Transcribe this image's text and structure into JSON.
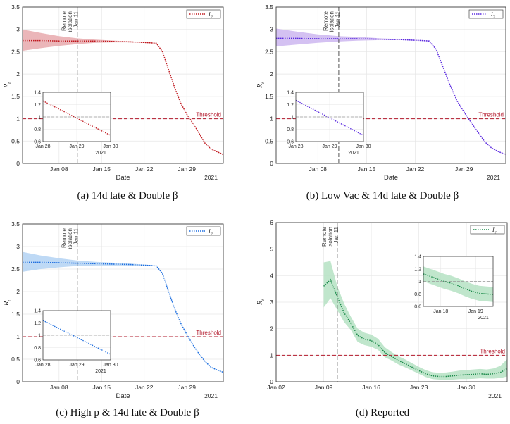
{
  "chart_data": [
    {
      "type": "line",
      "caption": "(a) 14d late & Double β",
      "ylabel": "R_t",
      "xlabel": "Date",
      "year_label": "2021",
      "legend": "I_2",
      "color": "#c0181e",
      "band_color": "#e8a9ad",
      "ylim": [
        0,
        3.5
      ],
      "yticks": [
        0,
        0.5,
        1,
        1.5,
        2,
        2.5,
        3,
        3.5
      ],
      "ytick_labels": [
        "0",
        "0.5",
        "1",
        "1.5",
        "2",
        "2.5",
        "3",
        "3.5"
      ],
      "xlim": [
        0,
        33
      ],
      "xticks": [
        6,
        13,
        20,
        27
      ],
      "xtick_labels": [
        "Jan 08",
        "Jan 15",
        "Jan 22",
        "Jan 29"
      ],
      "threshold": 1,
      "threshold_label": "Threshold",
      "vline_x": 9,
      "vline_label": [
        "Remote",
        "isolation",
        "Jan 11"
      ],
      "x": [
        0,
        3,
        6,
        9,
        12,
        15,
        18,
        21,
        22,
        23,
        24,
        25,
        26,
        27,
        28,
        29,
        30,
        31,
        32,
        33
      ],
      "y": [
        2.75,
        2.75,
        2.74,
        2.74,
        2.74,
        2.73,
        2.72,
        2.7,
        2.69,
        2.5,
        2.1,
        1.7,
        1.35,
        1.1,
        0.9,
        0.68,
        0.45,
        0.32,
        0.26,
        0.2
      ],
      "upper": [
        3.0,
        2.92,
        2.85,
        2.8,
        2.77,
        2.75,
        2.73,
        2.71,
        2.7,
        2.51,
        2.11,
        1.71,
        1.36,
        1.11,
        0.91,
        0.69,
        0.46,
        0.33,
        0.27,
        0.21
      ],
      "lower": [
        2.52,
        2.58,
        2.63,
        2.67,
        2.7,
        2.71,
        2.71,
        2.69,
        2.68,
        2.49,
        2.09,
        1.69,
        1.34,
        1.09,
        0.89,
        0.67,
        0.44,
        0.31,
        0.25,
        0.19
      ],
      "inset": {
        "xlim": [
          0,
          2
        ],
        "ylim": [
          0.6,
          1.4
        ],
        "yticks": [
          0.6,
          0.8,
          1,
          1.2,
          1.4
        ],
        "ytick_labels": [
          "0.6",
          "0.8",
          "1",
          "1.2",
          "1.4"
        ],
        "xticks": [
          0,
          1,
          2
        ],
        "xtick_labels": [
          "Jan 28",
          "Jan 29",
          "Jan 30"
        ],
        "year_label": "2021",
        "x": [
          0,
          2
        ],
        "y": [
          1.26,
          0.7
        ],
        "upper": [
          1.26,
          0.7
        ],
        "lower": [
          1.26,
          0.7
        ]
      }
    },
    {
      "type": "line",
      "caption": "(b) Low Vac & 14d late & Double β",
      "ylabel": "R_t",
      "xlabel": "Date",
      "year_label": "2021",
      "legend": "I_2",
      "color": "#5b2be0",
      "band_color": "#cdb6f0",
      "ylim": [
        0,
        3.5
      ],
      "yticks": [
        0,
        0.5,
        1,
        1.5,
        2,
        2.5,
        3,
        3.5
      ],
      "ytick_labels": [
        "0",
        "0.5",
        "1",
        "1.5",
        "2",
        "2.5",
        "3",
        "3.5"
      ],
      "xlim": [
        0,
        33
      ],
      "xticks": [
        6,
        13,
        20,
        27
      ],
      "xtick_labels": [
        "Jan 08",
        "Jan 15",
        "Jan 22",
        "Jan 29"
      ],
      "threshold": 1,
      "threshold_label": "Threshold",
      "vline_x": 9,
      "vline_label": [
        "Remote",
        "isolation",
        "Jan 11"
      ],
      "x": [
        0,
        3,
        6,
        9,
        12,
        15,
        18,
        21,
        22,
        23,
        24,
        25,
        26,
        27,
        28,
        29,
        30,
        31,
        32,
        33
      ],
      "y": [
        2.8,
        2.8,
        2.79,
        2.79,
        2.79,
        2.78,
        2.77,
        2.75,
        2.74,
        2.55,
        2.15,
        1.75,
        1.4,
        1.15,
        0.92,
        0.7,
        0.48,
        0.34,
        0.26,
        0.2
      ],
      "upper": [
        3.02,
        2.95,
        2.89,
        2.85,
        2.83,
        2.8,
        2.78,
        2.76,
        2.75,
        2.56,
        2.16,
        1.76,
        1.41,
        1.16,
        0.93,
        0.71,
        0.49,
        0.35,
        0.27,
        0.21
      ],
      "lower": [
        2.62,
        2.66,
        2.7,
        2.73,
        2.75,
        2.76,
        2.76,
        2.74,
        2.73,
        2.54,
        2.14,
        1.74,
        1.39,
        1.14,
        0.91,
        0.69,
        0.47,
        0.33,
        0.25,
        0.19
      ],
      "inset": {
        "xlim": [
          0,
          2
        ],
        "ylim": [
          0.6,
          1.4
        ],
        "yticks": [
          0.6,
          0.8,
          1,
          1.2,
          1.4
        ],
        "ytick_labels": [
          "0.6",
          "0.8",
          "1",
          "1.2",
          "1.4"
        ],
        "xticks": [
          0,
          1,
          2
        ],
        "xtick_labels": [
          "Jan 28",
          "Jan 29",
          "Jan 30"
        ],
        "year_label": "2021",
        "x": [
          0,
          2
        ],
        "y": [
          1.27,
          0.7
        ],
        "upper": [
          1.27,
          0.7
        ],
        "lower": [
          1.27,
          0.7
        ]
      }
    },
    {
      "type": "line",
      "caption": "(c) High p & 14d late & Double β",
      "ylabel": "R_t",
      "xlabel": "Date",
      "year_label": "2021",
      "legend": "I_2",
      "color": "#1f6fe0",
      "band_color": "#b3d2f3",
      "ylim": [
        0,
        3.5
      ],
      "yticks": [
        0,
        0.5,
        1,
        1.5,
        2,
        2.5,
        3,
        3.5
      ],
      "ytick_labels": [
        "0",
        "0.5",
        "1",
        "1.5",
        "2",
        "2.5",
        "3",
        "3.5"
      ],
      "xlim": [
        0,
        33
      ],
      "xticks": [
        6,
        13,
        20,
        27
      ],
      "xtick_labels": [
        "Jan 08",
        "Jan 15",
        "Jan 22",
        "Jan 29"
      ],
      "threshold": 1,
      "threshold_label": "Threshold",
      "vline_x": 9,
      "vline_label": [
        "Remote",
        "isolation",
        "Jan 11"
      ],
      "x": [
        0,
        3,
        6,
        9,
        12,
        15,
        18,
        21,
        22,
        23,
        24,
        25,
        26,
        27,
        28,
        29,
        30,
        31,
        32,
        33
      ],
      "y": [
        2.65,
        2.65,
        2.64,
        2.63,
        2.62,
        2.61,
        2.6,
        2.58,
        2.57,
        2.4,
        2.0,
        1.62,
        1.3,
        1.05,
        0.82,
        0.62,
        0.45,
        0.32,
        0.26,
        0.21
      ],
      "upper": [
        2.88,
        2.8,
        2.74,
        2.69,
        2.66,
        2.64,
        2.62,
        2.59,
        2.58,
        2.41,
        2.01,
        1.63,
        1.31,
        1.06,
        0.83,
        0.63,
        0.46,
        0.33,
        0.27,
        0.22
      ],
      "lower": [
        2.44,
        2.5,
        2.54,
        2.57,
        2.58,
        2.58,
        2.58,
        2.57,
        2.56,
        2.39,
        1.99,
        1.61,
        1.29,
        1.04,
        0.81,
        0.61,
        0.44,
        0.31,
        0.25,
        0.2
      ],
      "inset": {
        "xlim": [
          0,
          2
        ],
        "ylim": [
          0.6,
          1.4
        ],
        "yticks": [
          0.6,
          0.8,
          1,
          1.2,
          1.4
        ],
        "ytick_labels": [
          "0.6",
          "0.8",
          "1",
          "1.2",
          "1.4"
        ],
        "xticks": [
          0,
          1,
          2
        ],
        "xtick_labels": [
          "Jan 28",
          "Jan 29",
          "Jan 30"
        ],
        "year_label": "2021",
        "x": [
          0,
          2
        ],
        "y": [
          1.24,
          0.69
        ],
        "upper": [
          1.24,
          0.69
        ],
        "lower": [
          1.24,
          0.69
        ]
      }
    },
    {
      "type": "line",
      "caption": "(d) Reported",
      "ylabel": "R_t",
      "xlabel": "",
      "year_label": "2021",
      "legend": "I_2",
      "color": "#1b8a4a",
      "band_color": "#b5e2c3",
      "ylim": [
        0,
        6
      ],
      "yticks": [
        0,
        1,
        2,
        3,
        4,
        5,
        6
      ],
      "ytick_labels": [
        "0",
        "1",
        "2",
        "3",
        "4",
        "5",
        "6"
      ],
      "xlim": [
        0,
        34
      ],
      "xticks": [
        0,
        7,
        14,
        21,
        28
      ],
      "xtick_labels": [
        "Jan 02",
        "Jan 09",
        "Jan 16",
        "Jan 23",
        "Jan 30"
      ],
      "threshold": 1,
      "threshold_label": "Threshold",
      "vline_x": 9,
      "vline_label": [
        "Remote",
        "isolation",
        "Jan 11"
      ],
      "x": [
        7,
        8,
        9,
        10,
        11,
        12,
        13,
        14,
        15,
        16,
        17,
        18,
        19,
        20,
        21,
        22,
        23,
        24,
        25,
        26,
        27,
        28,
        29,
        30,
        31,
        32,
        33,
        34
      ],
      "y": [
        3.6,
        3.85,
        3.2,
        2.6,
        2.2,
        1.75,
        1.6,
        1.55,
        1.4,
        1.1,
        0.95,
        0.8,
        0.68,
        0.55,
        0.42,
        0.3,
        0.22,
        0.2,
        0.2,
        0.22,
        0.25,
        0.26,
        0.28,
        0.3,
        0.28,
        0.3,
        0.35,
        0.5
      ],
      "upper": [
        4.5,
        4.55,
        3.6,
        2.95,
        2.45,
        2.0,
        1.85,
        1.78,
        1.62,
        1.3,
        1.12,
        0.96,
        0.84,
        0.7,
        0.56,
        0.44,
        0.36,
        0.34,
        0.35,
        0.38,
        0.42,
        0.44,
        0.46,
        0.48,
        0.46,
        0.5,
        0.6,
        0.85
      ],
      "lower": [
        2.8,
        3.15,
        2.7,
        2.25,
        1.95,
        1.5,
        1.38,
        1.32,
        1.2,
        0.92,
        0.8,
        0.65,
        0.54,
        0.42,
        0.3,
        0.18,
        0.1,
        0.08,
        0.07,
        0.08,
        0.1,
        0.1,
        0.11,
        0.13,
        0.12,
        0.12,
        0.14,
        0.2
      ],
      "inset": {
        "xlim": [
          0,
          20
        ],
        "ylim": [
          0.6,
          1.4
        ],
        "yticks": [
          0.6,
          0.8,
          1,
          1.2,
          1.4
        ],
        "ytick_labels": [
          "0.6",
          "0.8",
          "1",
          "1.2",
          "1.4"
        ],
        "xticks": [
          5,
          15
        ],
        "xtick_labels": [
          "Jan 18",
          "Jan 19"
        ],
        "year_label": "2021",
        "x": [
          0,
          2,
          4,
          6,
          8,
          10,
          12,
          14,
          16,
          18,
          20
        ],
        "y": [
          1.12,
          1.08,
          1.04,
          1.0,
          0.97,
          0.93,
          0.88,
          0.84,
          0.81,
          0.8,
          0.79
        ],
        "upper": [
          1.24,
          1.2,
          1.16,
          1.12,
          1.09,
          1.05,
          1.0,
          0.96,
          0.93,
          0.92,
          0.91
        ],
        "lower": [
          1.0,
          0.96,
          0.92,
          0.88,
          0.85,
          0.81,
          0.76,
          0.72,
          0.69,
          0.68,
          0.67
        ]
      }
    }
  ]
}
